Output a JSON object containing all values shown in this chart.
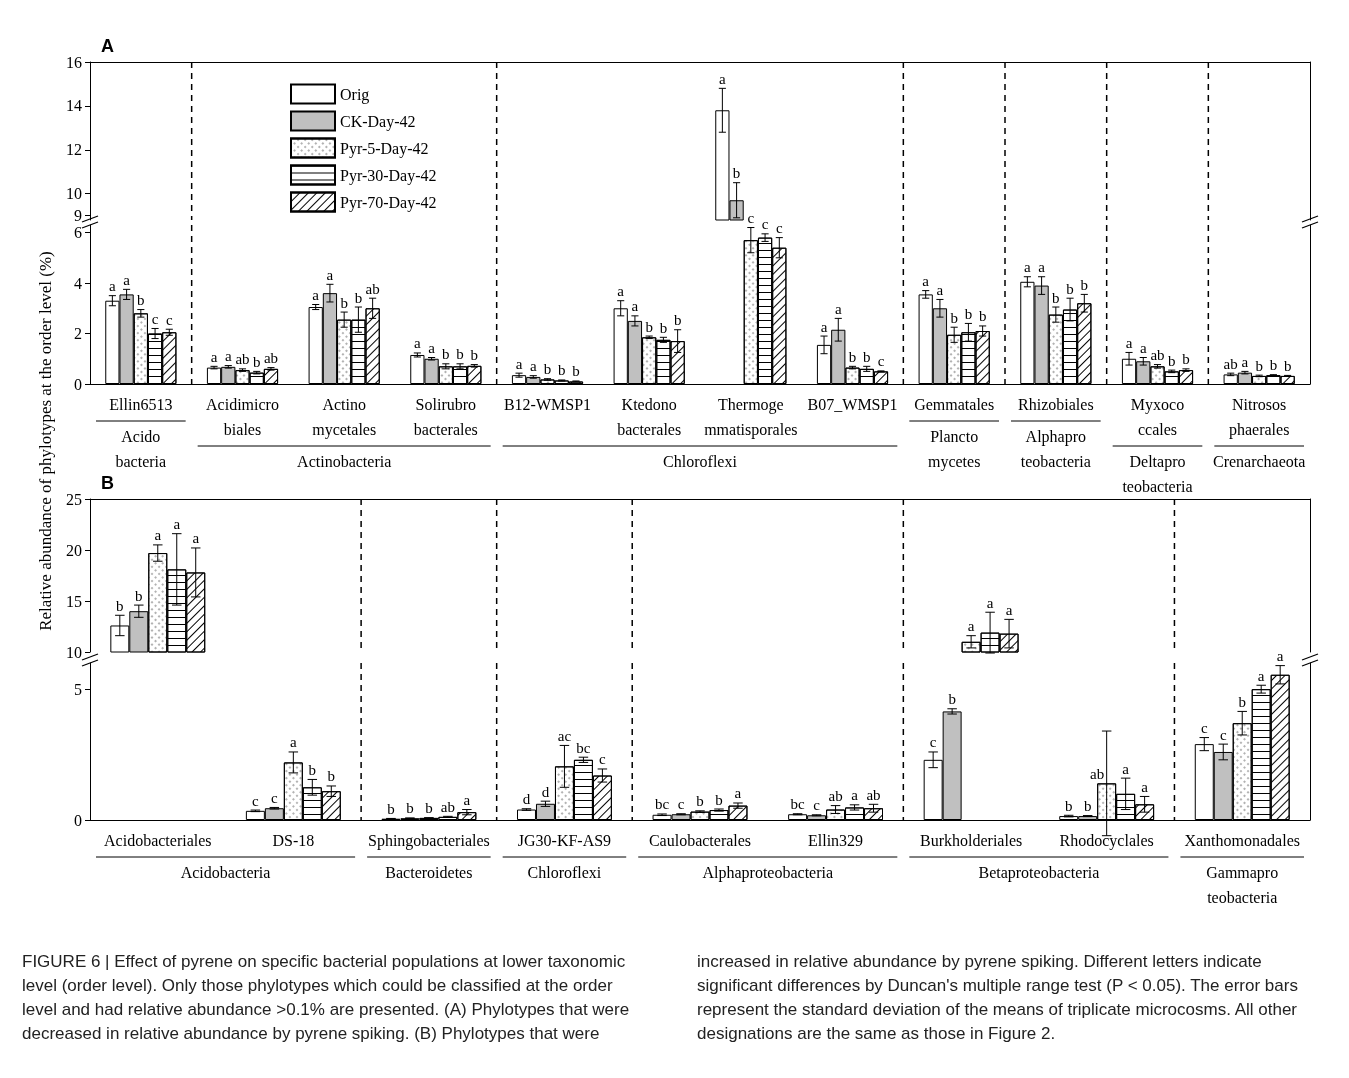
{
  "chart_data": [
    {
      "type": "bar",
      "title": "A",
      "tick_labels": "y",
      "categories": [
        null,
        null,
        null,
        null,
        null,
        null,
        null,
        null,
        null,
        null,
        null,
        null
      ],
      "series": [
        {
          "name": "Orig",
          "color": "#ffffff",
          "values": [
            null,
            null,
            null,
            null,
            null,
            null,
            13.8,
            null,
            null,
            null,
            null,
            null
          ],
          "errors": [
            null,
            null,
            null,
            null,
            null,
            null,
            1.0,
            null,
            null,
            null,
            null,
            null
          ],
          "value_labels": [
            null,
            null,
            null,
            null,
            null,
            null,
            "a",
            null,
            null,
            null,
            null,
            null
          ]
        },
        {
          "name": "CK-Day-42",
          "color": "#c0c0c0",
          "values": [
            null,
            null,
            null,
            null,
            null,
            null,
            9.7,
            null,
            null,
            null,
            null,
            null
          ],
          "errors": [
            null,
            null,
            null,
            null,
            null,
            null,
            0.8,
            null,
            null,
            null,
            null,
            null
          ],
          "value_labels": [
            null,
            null,
            null,
            null,
            null,
            null,
            "b",
            null,
            null,
            null,
            null,
            null
          ]
        },
        {
          "name": "Pyr-5-Day-42",
          "color": "#ffffff",
          "values": [
            null,
            null,
            null,
            null,
            null,
            null,
            null,
            null,
            null,
            null,
            null,
            null
          ]
        },
        {
          "name": "Pyr-30-Day-42",
          "color": "#ffffff",
          "values": [
            null,
            null,
            null,
            null,
            null,
            null,
            null,
            null,
            null,
            null,
            null,
            null
          ]
        },
        {
          "name": "Pyr-70-Day-42",
          "color": "#ffffff",
          "values": [
            null,
            null,
            null,
            null,
            null,
            null,
            null,
            null,
            null,
            null,
            null,
            null
          ]
        }
      ],
      "ylim": [
        8.8,
        16
      ],
      "yticks": [
        9,
        10,
        12,
        14,
        16
      ],
      "legend": "left"
    },
    {
      "type": "bar",
      "ylabel": "Relative abundance of phylotypes at the order level (%)",
      "categories": [
        "Ellin6513",
        "Acidimicro biales",
        "Actino mycetales",
        "Solirubro bacterales",
        "B12-WMSP1",
        "Ktedono bacterales",
        "Thermoge mmatisporales",
        "B07_WMSP1",
        "Gemmatales",
        "Rhizobiales",
        "Myxoco ccales",
        "Nitrosos phaerales"
      ],
      "series": [
        {
          "color": "#ffffff",
          "values": [
            3.3,
            0.65,
            3.05,
            1.15,
            0.35,
            3.0,
            null,
            1.55,
            3.55,
            4.05,
            1.0,
            0.38
          ],
          "errors": [
            0.2,
            0.05,
            0.1,
            0.08,
            0.08,
            0.3,
            null,
            0.35,
            0.15,
            0.2,
            0.25,
            0.05
          ],
          "value_labels": [
            "a",
            "a",
            "a",
            "a",
            "a",
            "a",
            null,
            "a",
            "a",
            "a",
            "a",
            "ab"
          ]
        },
        {
          "color": "#c0c0c0",
          "values": [
            3.55,
            0.68,
            3.6,
            1.0,
            0.28,
            2.5,
            null,
            2.15,
            3.0,
            3.9,
            0.9,
            0.45
          ],
          "errors": [
            0.2,
            0.05,
            0.35,
            0.05,
            0.05,
            0.2,
            null,
            0.45,
            0.35,
            0.35,
            0.15,
            0.05
          ],
          "value_labels": [
            "a",
            "a",
            "a",
            "a",
            "a",
            "a",
            null,
            "a",
            "a",
            "a",
            "a",
            "a"
          ]
        },
        {
          "color": "#ffffff",
          "values": [
            2.8,
            0.55,
            2.55,
            0.7,
            0.18,
            1.85,
            5.7,
            0.65,
            1.95,
            2.75,
            0.7,
            0.32
          ],
          "errors": [
            0.15,
            0.05,
            0.3,
            0.1,
            0.03,
            0.05,
            0.5,
            0.05,
            0.3,
            0.3,
            0.07,
            0.03
          ],
          "value_labels": [
            "b",
            "ab",
            "b",
            "b",
            "b",
            "b",
            "c",
            "b",
            "b",
            "b",
            "ab",
            "b"
          ]
        },
        {
          "color": "#ffffff",
          "values": [
            2.0,
            0.45,
            2.55,
            0.7,
            0.14,
            1.75,
            5.8,
            0.6,
            2.05,
            2.95,
            0.5,
            0.35
          ],
          "errors": [
            0.2,
            0.05,
            0.5,
            0.1,
            0.02,
            0.1,
            0.15,
            0.1,
            0.35,
            0.45,
            0.05,
            0.02
          ],
          "value_labels": [
            "c",
            "b",
            "b",
            "b",
            "b",
            "b",
            "c",
            "b",
            "b",
            "b",
            "b",
            "b"
          ]
        },
        {
          "color": "#ffffff",
          "values": [
            2.05,
            0.6,
            3.0,
            0.72,
            0.1,
            1.7,
            5.4,
            0.5,
            2.1,
            3.2,
            0.55,
            0.32
          ],
          "errors": [
            0.12,
            0.05,
            0.4,
            0.05,
            0.02,
            0.45,
            0.4,
            0.02,
            0.2,
            0.35,
            0.05,
            0.02
          ],
          "value_labels": [
            "c",
            "ab",
            "ab",
            "b",
            "b",
            "b",
            "c",
            "c",
            "b",
            "b",
            "b",
            "b"
          ]
        }
      ],
      "ylim": [
        0,
        6.3
      ],
      "yticks": [
        0,
        2,
        4,
        6
      ],
      "annotations": [
        "Acido bacteria",
        "Actinobacteria",
        "Chloroflexi",
        "Plancto mycetes",
        "Alphapro teobacteria",
        "Deltapro teobacteria",
        "Crenarchaeota"
      ]
    },
    {
      "type": "bar",
      "title": "B",
      "tick_labels": "y",
      "categories": [
        null,
        null,
        null,
        null,
        null,
        null,
        null,
        null,
        null
      ],
      "series": [
        {
          "color": "#ffffff",
          "values": [
            12.6,
            null,
            null,
            null,
            null,
            null,
            null,
            null,
            null
          ],
          "errors": [
            1.0,
            null,
            null,
            null,
            null,
            null,
            null,
            null,
            null
          ],
          "value_labels": [
            "b",
            null,
            null,
            null,
            null,
            null,
            null,
            null,
            null
          ]
        },
        {
          "color": "#c0c0c0",
          "values": [
            14.0,
            null,
            null,
            null,
            null,
            null,
            null,
            null,
            null
          ],
          "errors": [
            0.6,
            null,
            null,
            null,
            null,
            null,
            null,
            null,
            null
          ],
          "value_labels": [
            "b",
            null,
            null,
            null,
            null,
            null,
            null,
            null,
            null
          ]
        },
        {
          "color": "#ffffff",
          "values": [
            19.7,
            null,
            null,
            null,
            null,
            null,
            11.0,
            null,
            null
          ],
          "errors": [
            0.8,
            null,
            null,
            null,
            null,
            null,
            0.6,
            null,
            null
          ],
          "value_labels": [
            "a",
            null,
            null,
            null,
            null,
            null,
            "a",
            null,
            null
          ]
        },
        {
          "color": "#ffffff",
          "values": [
            18.1,
            null,
            null,
            null,
            null,
            null,
            11.9,
            null,
            null
          ],
          "errors": [
            3.5,
            null,
            null,
            null,
            null,
            null,
            2.0,
            null,
            null
          ],
          "value_labels": [
            "a",
            null,
            null,
            null,
            null,
            null,
            "a",
            null,
            null
          ]
        },
        {
          "color": "#ffffff",
          "values": [
            17.8,
            null,
            null,
            null,
            null,
            null,
            11.8,
            null,
            null
          ],
          "errors": [
            2.4,
            null,
            null,
            null,
            null,
            null,
            1.4,
            null,
            null
          ],
          "value_labels": [
            "a",
            null,
            null,
            null,
            null,
            null,
            "a",
            null,
            null
          ]
        }
      ],
      "ylim": [
        10,
        25
      ],
      "yticks": [
        10,
        15,
        20,
        25
      ]
    },
    {
      "type": "bar",
      "categories": [
        "Acidobacteriales",
        "DS-18",
        "Sphingobacteriales",
        "JG30-KF-AS9",
        "Caulobacterales",
        "Ellin329",
        "Burkholderiales",
        "Rhodocyclales",
        "Xanthomonadales"
      ],
      "series": [
        {
          "color": "#ffffff",
          "values": [
            null,
            0.35,
            0.05,
            0.4,
            0.2,
            0.22,
            2.3,
            0.15,
            2.9
          ],
          "errors": [
            null,
            0.03,
            0.01,
            0.03,
            0.03,
            0.02,
            0.3,
            0.03,
            0.25
          ],
          "value_labels": [
            null,
            "c",
            "b",
            "d",
            "bc",
            "bc",
            "c",
            "b",
            "c"
          ]
        },
        {
          "color": "#c0c0c0",
          "values": [
            null,
            0.45,
            0.07,
            0.62,
            0.22,
            0.18,
            4.15,
            0.15,
            2.6
          ],
          "errors": [
            null,
            0.03,
            0.01,
            0.1,
            0.02,
            0.02,
            0.1,
            0.02,
            0.3
          ],
          "value_labels": [
            null,
            "c",
            "b",
            "d",
            "c",
            "c",
            "b",
            "b",
            "c"
          ]
        },
        {
          "color": "#ffffff",
          "values": [
            null,
            2.2,
            0.08,
            2.05,
            0.32,
            0.4,
            null,
            1.4,
            3.7
          ],
          "errors": [
            null,
            0.4,
            0.01,
            0.8,
            0.03,
            0.15,
            null,
            2.0,
            0.45
          ],
          "value_labels": [
            null,
            "a",
            "b",
            "ac",
            "b",
            "ab",
            null,
            "ab",
            "b"
          ]
        },
        {
          "color": "#ffffff",
          "values": [
            null,
            1.25,
            0.12,
            2.3,
            0.38,
            0.48,
            null,
            1.0,
            5.0
          ],
          "errors": [
            null,
            0.3,
            0.02,
            0.1,
            0.04,
            0.1,
            null,
            0.6,
            0.15
          ],
          "value_labels": [
            null,
            "b",
            "ab",
            "bc",
            "b",
            "a",
            null,
            "a",
            "a"
          ]
        },
        {
          "color": "#ffffff",
          "values": [
            null,
            1.1,
            0.3,
            1.7,
            0.55,
            0.45,
            null,
            0.6,
            5.55
          ],
          "errors": [
            null,
            0.2,
            0.1,
            0.25,
            0.1,
            0.15,
            null,
            0.3,
            0.35
          ],
          "value_labels": [
            null,
            "b",
            "a",
            "c",
            "a",
            "ab",
            null,
            "a",
            "a"
          ]
        }
      ],
      "ylim": [
        0,
        6
      ],
      "yticks": [
        0,
        5
      ],
      "annotations": [
        "Acidobacteria",
        "Bacteroidetes",
        "Chloroflexi",
        "Alphaproteobacteria",
        "Betaproteobacteria",
        "Gammapro teobacteria",
        "FIGURE 6 | Effect of pyrene on specific bacterial populations at lower taxonomic level (order level). Only those phylotypes which could be classified at the order level and had relative abundance >0.1% are presented. (A) Phylotypes that were decreased in relative abundance by pyrene spiking. (B) Phylotypes that were increased in relative abundance by pyrene spiking. Different letters indicate significant differences by Duncan's multiple range test (P < 0.05). The error bars represent the standard deviation of the means of triplicate microcosms. All other designations are the same as those in Figure 2."
      ]
    }
  ]
}
